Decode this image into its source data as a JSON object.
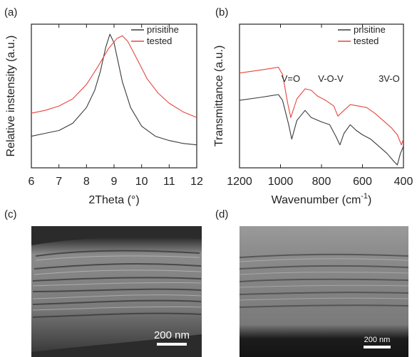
{
  "panel_labels": [
    "(a)",
    "(b)",
    "(c)",
    "(d)"
  ],
  "colors": {
    "pristine": "#3a3a3a",
    "tested": "#e8453c",
    "axis": "#222222"
  },
  "chart_data": [
    {
      "type": "line",
      "panel": "(a)",
      "title": "",
      "xlabel": "2Theta (°)",
      "ylabel": "Relative instensity (a.u.)",
      "xlim": [
        6,
        12
      ],
      "ylim": [
        0,
        1
      ],
      "xticks": [
        6,
        7,
        8,
        9,
        10,
        11,
        12
      ],
      "yticks": [],
      "legend": "top-right",
      "series": [
        {
          "name": "prisitine",
          "x": [
            6.0,
            6.5,
            7.0,
            7.5,
            8.0,
            8.3,
            8.5,
            8.7,
            8.85,
            9.0,
            9.3,
            9.6,
            10.0,
            10.5,
            11.0,
            11.5,
            12.0
          ],
          "y": [
            0.22,
            0.24,
            0.26,
            0.31,
            0.42,
            0.54,
            0.67,
            0.84,
            0.93,
            0.87,
            0.6,
            0.42,
            0.29,
            0.22,
            0.19,
            0.17,
            0.16
          ]
        },
        {
          "name": "tested",
          "x": [
            6.0,
            6.5,
            7.0,
            7.5,
            8.0,
            8.4,
            8.8,
            9.1,
            9.3,
            9.5,
            9.8,
            10.2,
            10.6,
            11.0,
            11.5,
            12.0
          ],
          "y": [
            0.38,
            0.4,
            0.43,
            0.48,
            0.58,
            0.7,
            0.83,
            0.9,
            0.92,
            0.88,
            0.77,
            0.62,
            0.52,
            0.45,
            0.39,
            0.35
          ]
        }
      ]
    },
    {
      "type": "line",
      "panel": "(b)",
      "title": "",
      "xlabel": "Wavenumber (cm-1)",
      "ylabel": "Transmittance (a.u.)",
      "xlim": [
        1200,
        400
      ],
      "ylim": [
        0,
        1
      ],
      "xticks": [
        1200,
        1000,
        800,
        600,
        400
      ],
      "yticks": [],
      "legend": "top-right",
      "annotations": [
        {
          "text": "V=O",
          "x": 950,
          "y": 0.6
        },
        {
          "text": "V-O-V",
          "x": 755,
          "y": 0.6
        },
        {
          "text": "3V-O",
          "x": 470,
          "y": 0.6
        }
      ],
      "series": [
        {
          "name": "prisitine",
          "x": [
            1200,
            1100,
            1010,
            990,
            960,
            945,
            920,
            880,
            850,
            800,
            760,
            730,
            710,
            690,
            660,
            630,
            600,
            560,
            520,
            480,
            450,
            430,
            415,
            400
          ],
          "y": [
            0.47,
            0.49,
            0.51,
            0.47,
            0.3,
            0.2,
            0.33,
            0.4,
            0.35,
            0.32,
            0.3,
            0.22,
            0.16,
            0.24,
            0.3,
            0.26,
            0.23,
            0.2,
            0.15,
            0.1,
            0.05,
            0.02,
            0.1,
            0.15
          ]
        },
        {
          "name": "tested",
          "x": [
            1200,
            1100,
            1010,
            990,
            965,
            950,
            920,
            880,
            850,
            820,
            780,
            740,
            720,
            690,
            660,
            620,
            580,
            540,
            500,
            460,
            430,
            410,
            400
          ],
          "y": [
            0.66,
            0.68,
            0.7,
            0.65,
            0.45,
            0.35,
            0.48,
            0.55,
            0.54,
            0.5,
            0.47,
            0.43,
            0.36,
            0.4,
            0.44,
            0.43,
            0.42,
            0.38,
            0.33,
            0.28,
            0.23,
            0.16,
            0.2
          ]
        }
      ]
    }
  ],
  "micrographs": [
    {
      "panel": "(c)",
      "scale_label": "200 nm"
    },
    {
      "panel": "(d)",
      "scale_label": "200 nm"
    }
  ]
}
